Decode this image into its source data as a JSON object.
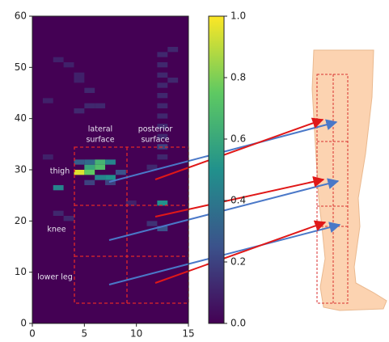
{
  "chart_data": {
    "type": "heatmap",
    "colormap": "viridis",
    "xlim": [
      0,
      15
    ],
    "ylim": [
      0,
      60
    ],
    "xticks": [
      0,
      5,
      10,
      15
    ],
    "yticks": [
      0,
      10,
      20,
      30,
      40,
      50,
      60
    ],
    "clim": [
      0,
      1.0
    ],
    "cticks": [
      {
        "value": 0,
        "label": "0.0"
      },
      0.2,
      0.4,
      0.6,
      0.8,
      {
        "value": 1,
        "label": "1.0"
      }
    ],
    "region_labels": [
      [
        "lateral",
        "surface"
      ],
      [
        "posterior",
        "surface"
      ]
    ],
    "segment_labels": [
      "thigh",
      "knee",
      "lower leg"
    ],
    "cells": [
      {
        "x": 4,
        "y": 29,
        "value": 0.95
      },
      {
        "x": 5,
        "y": 29,
        "value": 0.75
      },
      {
        "x": 5,
        "y": 30,
        "value": 0.6
      },
      {
        "x": 6,
        "y": 30,
        "value": 0.7
      },
      {
        "x": 6,
        "y": 31,
        "value": 0.65
      },
      {
        "x": 7,
        "y": 31,
        "value": 0.45
      },
      {
        "x": 6,
        "y": 28,
        "value": 0.45
      },
      {
        "x": 7,
        "y": 28,
        "value": 0.5
      },
      {
        "x": 5,
        "y": 31,
        "value": 0.35
      },
      {
        "x": 4,
        "y": 31,
        "value": 0.3
      },
      {
        "x": 2,
        "y": 26,
        "value": 0.45
      },
      {
        "x": 7,
        "y": 27,
        "value": 0.2
      },
      {
        "x": 8,
        "y": 29,
        "value": 0.25
      },
      {
        "x": 5,
        "y": 27,
        "value": 0.2
      },
      {
        "x": 12,
        "y": 23,
        "value": 0.5
      },
      {
        "x": 12,
        "y": 34,
        "value": 0.2
      },
      {
        "x": 12,
        "y": 18,
        "value": 0.25
      },
      {
        "x": 11,
        "y": 19,
        "value": 0.15
      },
      {
        "x": 2,
        "y": 51,
        "value": 0.1
      },
      {
        "x": 3,
        "y": 50,
        "value": 0.1
      },
      {
        "x": 4,
        "y": 48,
        "value": 0.1
      },
      {
        "x": 4,
        "y": 47,
        "value": 0.1
      },
      {
        "x": 5,
        "y": 45,
        "value": 0.12
      },
      {
        "x": 4,
        "y": 41,
        "value": 0.12
      },
      {
        "x": 5,
        "y": 42,
        "value": 0.12
      },
      {
        "x": 6,
        "y": 42,
        "value": 0.12
      },
      {
        "x": 1,
        "y": 43,
        "value": 0.1
      },
      {
        "x": 2,
        "y": 21,
        "value": 0.12
      },
      {
        "x": 3,
        "y": 20,
        "value": 0.12
      },
      {
        "x": 12,
        "y": 52,
        "value": 0.12
      },
      {
        "x": 12,
        "y": 50,
        "value": 0.12
      },
      {
        "x": 12,
        "y": 48,
        "value": 0.12
      },
      {
        "x": 12,
        "y": 46,
        "value": 0.12
      },
      {
        "x": 12,
        "y": 44,
        "value": 0.12
      },
      {
        "x": 12,
        "y": 42,
        "value": 0.12
      },
      {
        "x": 12,
        "y": 40,
        "value": 0.12
      },
      {
        "x": 12,
        "y": 38,
        "value": 0.12
      },
      {
        "x": 12,
        "y": 36,
        "value": 0.12
      },
      {
        "x": 13,
        "y": 53,
        "value": 0.12
      },
      {
        "x": 13,
        "y": 47,
        "value": 0.12
      },
      {
        "x": 11,
        "y": 30,
        "value": 0.12
      },
      {
        "x": 12,
        "y": 32,
        "value": 0.12
      },
      {
        "x": 9,
        "y": 23,
        "value": 0.1
      },
      {
        "x": 1,
        "y": 32,
        "value": 0.1
      }
    ]
  }
}
